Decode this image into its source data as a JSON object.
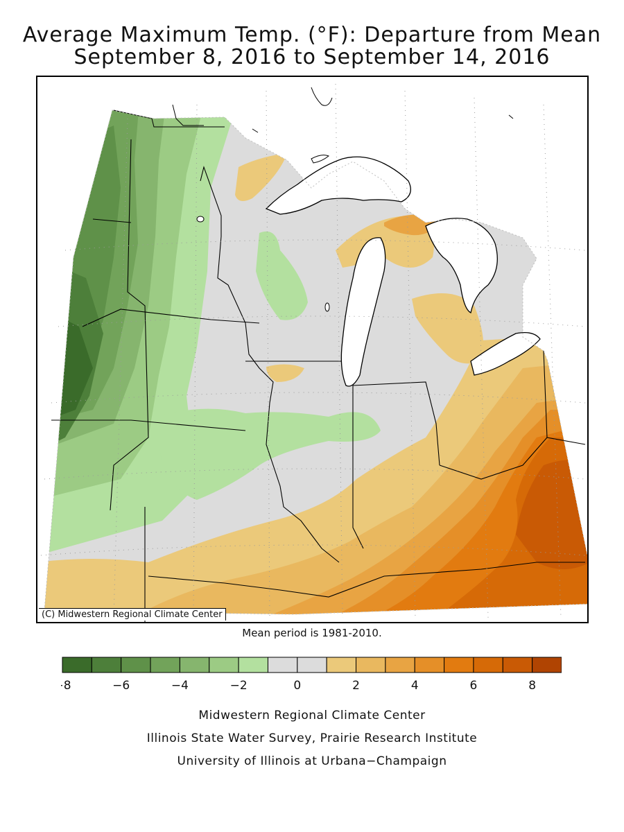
{
  "title_line1": "Average Maximum Temp. (°F): Departure from Mean",
  "title_line2": "September 8, 2016 to September 14, 2016",
  "copyright": "(C) Midwestern Regional Climate Center",
  "mean_period": "Mean period is 1981-2010.",
  "legend": {
    "bins": [
      {
        "from": -8,
        "to": -7,
        "color": "#3a6b2a"
      },
      {
        "from": -7,
        "to": -6,
        "color": "#4d7f3a"
      },
      {
        "from": -6,
        "to": -5,
        "color": "#5f9149"
      },
      {
        "from": -5,
        "to": -4,
        "color": "#72a35a"
      },
      {
        "from": -4,
        "to": -3,
        "color": "#86b56e"
      },
      {
        "from": -3,
        "to": -2,
        "color": "#9ccb84"
      },
      {
        "from": -2,
        "to": -1,
        "color": "#b3e09f"
      },
      {
        "from": -1,
        "to": 0,
        "color": "#dcdcdc"
      },
      {
        "from": 0,
        "to": 1,
        "color": "#dcdcdc"
      },
      {
        "from": 1,
        "to": 2,
        "color": "#ebc97a"
      },
      {
        "from": 2,
        "to": 3,
        "color": "#e9b85f"
      },
      {
        "from": 3,
        "to": 4,
        "color": "#e8a443"
      },
      {
        "from": 4,
        "to": 5,
        "color": "#e58f28"
      },
      {
        "from": 5,
        "to": 6,
        "color": "#e27b10"
      },
      {
        "from": 6,
        "to": 7,
        "color": "#d66a07"
      },
      {
        "from": 7,
        "to": 8,
        "color": "#c95a05"
      },
      {
        "from": 8,
        "to": 9,
        "color": "#b04402"
      }
    ],
    "tick_labels": [
      "−8",
      "−6",
      "−4",
      "−2",
      "0",
      "2",
      "4",
      "6",
      "8"
    ],
    "tick_values": [
      -8,
      -6,
      -4,
      -2,
      0,
      2,
      4,
      6,
      8
    ]
  },
  "credits": {
    "line1": "Midwestern Regional Climate Center",
    "line2": "Illinois State Water Survey, Prairie Research Institute",
    "line3": "University of Illinois at Urbana−Champaign"
  },
  "map": {
    "region": "Upper Midwest and Ohio Valley",
    "colors": {
      "dark_green": "#4d7f3a",
      "mid_green": "#86b56e",
      "light_green": "#b3e09f",
      "neutral": "#dcdcdc",
      "light_orange": "#ebc97a",
      "mid_orange": "#e58f28",
      "dark_orange": "#c95a05",
      "lake": "#ffffff"
    }
  }
}
